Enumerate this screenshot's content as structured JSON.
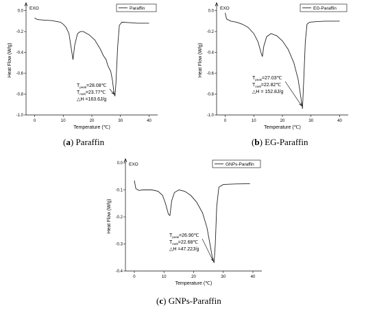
{
  "captions": [
    {
      "letter": "a",
      "title": "Paraffin"
    },
    {
      "letter": "b",
      "title": "EG-Paraffin"
    },
    {
      "letter": "c",
      "title": "GNPs-Paraffin"
    }
  ],
  "chart_data": [
    {
      "type": "line",
      "xlabel": "Temperature (℃)",
      "ylabel": "Heat Flow (W/g)",
      "xlim": [
        -3,
        43
      ],
      "ylim": [
        -1.0,
        0.05
      ],
      "xticks": [
        0,
        10,
        20,
        30,
        40
      ],
      "yticks": [
        0.0,
        -0.2,
        -0.4,
        -0.6,
        -0.8,
        -1.0
      ],
      "ytick_labels": [
        "0.0",
        "-0.2",
        "-0.4",
        "-0.6",
        "-0.8",
        "-1.0"
      ],
      "exo_label": "EXO",
      "legend": {
        "position": "top-right"
      },
      "series": [
        {
          "name": "Paraffin",
          "points": [
            [
              0,
              -0.07
            ],
            [
              1,
              -0.085
            ],
            [
              3,
              -0.09
            ],
            [
              6,
              -0.095
            ],
            [
              9,
              -0.11
            ],
            [
              10,
              -0.13
            ],
            [
              11,
              -0.16
            ],
            [
              12,
              -0.22
            ],
            [
              12.8,
              -0.36
            ],
            [
              13.4,
              -0.47
            ],
            [
              14,
              -0.33
            ],
            [
              15,
              -0.22
            ],
            [
              16,
              -0.2
            ],
            [
              17,
              -0.2
            ],
            [
              19,
              -0.23
            ],
            [
              21,
              -0.28
            ],
            [
              23,
              -0.37
            ],
            [
              24,
              -0.43
            ],
            [
              25,
              -0.47
            ],
            [
              25.5,
              -0.52
            ],
            [
              26,
              -0.55
            ],
            [
              26.6,
              -0.58
            ],
            [
              27.2,
              -0.67
            ],
            [
              27.7,
              -0.78
            ],
            [
              28.08,
              -0.82
            ],
            [
              28.4,
              -0.7
            ],
            [
              29,
              -0.35
            ],
            [
              29.6,
              -0.14
            ],
            [
              30.5,
              -0.11
            ],
            [
              33,
              -0.115
            ],
            [
              36,
              -0.12
            ],
            [
              40,
              -0.12
            ]
          ]
        }
      ],
      "annotation": {
        "peak_label": "T",
        "peak_sub": "peak",
        "peak_value": "=28.08℃",
        "melt_label": "T",
        "melt_sub": "melt",
        "melt_value": "=23.77℃",
        "enthalpy": "△H =163.6J/g",
        "arrow_to": [
          28.08,
          -0.82
        ]
      }
    },
    {
      "type": "line",
      "xlabel": "Temperature (℃)",
      "ylabel": "Heat Flow (W/g)",
      "xlim": [
        -3,
        43
      ],
      "ylim": [
        -1.0,
        0.05
      ],
      "xticks": [
        0,
        10,
        20,
        30,
        40
      ],
      "yticks": [
        0.0,
        -0.2,
        -0.4,
        -0.6,
        -0.8,
        -1.0
      ],
      "ytick_labels": [
        "0.0",
        "-0.2",
        "-0.4",
        "-0.6",
        "-0.8",
        "-1.0"
      ],
      "exo_label": "EXO",
      "legend": {
        "position": "top-right"
      },
      "series": [
        {
          "name": "EG-Paraffin",
          "points": [
            [
              0,
              -0.02
            ],
            [
              0.5,
              -0.08
            ],
            [
              2,
              -0.1
            ],
            [
              4,
              -0.11
            ],
            [
              6,
              -0.13
            ],
            [
              8,
              -0.16
            ],
            [
              10,
              -0.22
            ],
            [
              11.5,
              -0.3
            ],
            [
              12.5,
              -0.4
            ],
            [
              13,
              -0.44
            ],
            [
              13.5,
              -0.34
            ],
            [
              14.5,
              -0.25
            ],
            [
              16,
              -0.22
            ],
            [
              18,
              -0.24
            ],
            [
              20,
              -0.29
            ],
            [
              22,
              -0.37
            ],
            [
              24,
              -0.5
            ],
            [
              25.5,
              -0.66
            ],
            [
              26.5,
              -0.84
            ],
            [
              27.03,
              -0.94
            ],
            [
              27.4,
              -0.7
            ],
            [
              28,
              -0.3
            ],
            [
              28.6,
              -0.13
            ],
            [
              29.5,
              -0.11
            ],
            [
              32,
              -0.105
            ],
            [
              35,
              -0.1
            ],
            [
              40,
              -0.1
            ]
          ]
        }
      ],
      "annotation": {
        "peak_label": "T",
        "peak_sub": "peak",
        "peak_value": "=27.03℃",
        "melt_label": "T",
        "melt_sub": "melt",
        "melt_value": "=22.82℃",
        "enthalpy": "△H = 152.8J/g",
        "arrow_to": [
          27.03,
          -0.93
        ]
      }
    },
    {
      "type": "line",
      "xlabel": "Temperature (℃)",
      "ylabel": "Heat Flow (W/g)",
      "xlim": [
        -3,
        43
      ],
      "ylim": [
        -0.4,
        0.005
      ],
      "xticks": [
        0,
        10,
        20,
        30,
        40
      ],
      "yticks": [
        0.0,
        -0.1,
        -0.2,
        -0.3,
        -0.4
      ],
      "ytick_labels": [
        "0.0",
        "-0.1",
        "-0.2",
        "-0.3",
        "-0.4"
      ],
      "exo_label": "EXO",
      "legend": {
        "position": "top-right"
      },
      "series": [
        {
          "name": "GNPs-Paraffin",
          "points": [
            [
              0,
              -0.065
            ],
            [
              0.5,
              -0.095
            ],
            [
              1.5,
              -0.102
            ],
            [
              3,
              -0.1
            ],
            [
              6,
              -0.1
            ],
            [
              8,
              -0.105
            ],
            [
              9.5,
              -0.12
            ],
            [
              10.5,
              -0.15
            ],
            [
              11.5,
              -0.19
            ],
            [
              12,
              -0.195
            ],
            [
              12.6,
              -0.14
            ],
            [
              13.5,
              -0.11
            ],
            [
              15,
              -0.1
            ],
            [
              17,
              -0.105
            ],
            [
              19,
              -0.12
            ],
            [
              21,
              -0.145
            ],
            [
              23,
              -0.185
            ],
            [
              24.5,
              -0.24
            ],
            [
              25.5,
              -0.3
            ],
            [
              26.3,
              -0.35
            ],
            [
              26.9,
              -0.37
            ],
            [
              27.3,
              -0.3
            ],
            [
              27.8,
              -0.16
            ],
            [
              28.5,
              -0.09
            ],
            [
              30,
              -0.08
            ],
            [
              34,
              -0.078
            ],
            [
              39,
              -0.077
            ]
          ]
        }
      ],
      "annotation": {
        "peak_label": "T",
        "peak_sub": "peak",
        "peak_value": "=26.90℃",
        "melt_label": "T",
        "melt_sub": "melt",
        "melt_value": "=22.68℃",
        "enthalpy": "△H =47.22J/g",
        "arrow_to": [
          26.9,
          -0.37
        ]
      }
    }
  ]
}
